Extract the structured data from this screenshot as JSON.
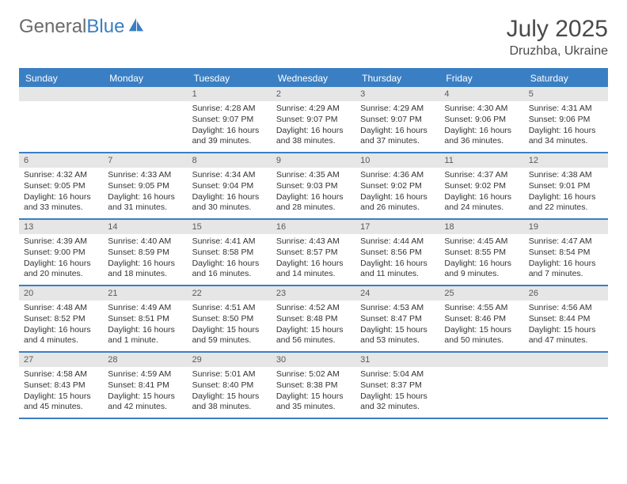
{
  "brand": {
    "part1": "General",
    "part2": "Blue"
  },
  "title": "July 2025",
  "location": "Druzhba, Ukraine",
  "colors": {
    "accent": "#3a7fc4",
    "dayBarBg": "#e6e6e6",
    "textMuted": "#6b6b6b",
    "textDark": "#4a4a4a"
  },
  "daysOfWeek": [
    "Sunday",
    "Monday",
    "Tuesday",
    "Wednesday",
    "Thursday",
    "Friday",
    "Saturday"
  ],
  "firstDayOffset": 2,
  "daysInMonth": 31,
  "days": {
    "1": {
      "sunrise": "4:28 AM",
      "sunset": "9:07 PM",
      "daylight": "16 hours and 39 minutes."
    },
    "2": {
      "sunrise": "4:29 AM",
      "sunset": "9:07 PM",
      "daylight": "16 hours and 38 minutes."
    },
    "3": {
      "sunrise": "4:29 AM",
      "sunset": "9:07 PM",
      "daylight": "16 hours and 37 minutes."
    },
    "4": {
      "sunrise": "4:30 AM",
      "sunset": "9:06 PM",
      "daylight": "16 hours and 36 minutes."
    },
    "5": {
      "sunrise": "4:31 AM",
      "sunset": "9:06 PM",
      "daylight": "16 hours and 34 minutes."
    },
    "6": {
      "sunrise": "4:32 AM",
      "sunset": "9:05 PM",
      "daylight": "16 hours and 33 minutes."
    },
    "7": {
      "sunrise": "4:33 AM",
      "sunset": "9:05 PM",
      "daylight": "16 hours and 31 minutes."
    },
    "8": {
      "sunrise": "4:34 AM",
      "sunset": "9:04 PM",
      "daylight": "16 hours and 30 minutes."
    },
    "9": {
      "sunrise": "4:35 AM",
      "sunset": "9:03 PM",
      "daylight": "16 hours and 28 minutes."
    },
    "10": {
      "sunrise": "4:36 AM",
      "sunset": "9:02 PM",
      "daylight": "16 hours and 26 minutes."
    },
    "11": {
      "sunrise": "4:37 AM",
      "sunset": "9:02 PM",
      "daylight": "16 hours and 24 minutes."
    },
    "12": {
      "sunrise": "4:38 AM",
      "sunset": "9:01 PM",
      "daylight": "16 hours and 22 minutes."
    },
    "13": {
      "sunrise": "4:39 AM",
      "sunset": "9:00 PM",
      "daylight": "16 hours and 20 minutes."
    },
    "14": {
      "sunrise": "4:40 AM",
      "sunset": "8:59 PM",
      "daylight": "16 hours and 18 minutes."
    },
    "15": {
      "sunrise": "4:41 AM",
      "sunset": "8:58 PM",
      "daylight": "16 hours and 16 minutes."
    },
    "16": {
      "sunrise": "4:43 AM",
      "sunset": "8:57 PM",
      "daylight": "16 hours and 14 minutes."
    },
    "17": {
      "sunrise": "4:44 AM",
      "sunset": "8:56 PM",
      "daylight": "16 hours and 11 minutes."
    },
    "18": {
      "sunrise": "4:45 AM",
      "sunset": "8:55 PM",
      "daylight": "16 hours and 9 minutes."
    },
    "19": {
      "sunrise": "4:47 AM",
      "sunset": "8:54 PM",
      "daylight": "16 hours and 7 minutes."
    },
    "20": {
      "sunrise": "4:48 AM",
      "sunset": "8:52 PM",
      "daylight": "16 hours and 4 minutes."
    },
    "21": {
      "sunrise": "4:49 AM",
      "sunset": "8:51 PM",
      "daylight": "16 hours and 1 minute."
    },
    "22": {
      "sunrise": "4:51 AM",
      "sunset": "8:50 PM",
      "daylight": "15 hours and 59 minutes."
    },
    "23": {
      "sunrise": "4:52 AM",
      "sunset": "8:48 PM",
      "daylight": "15 hours and 56 minutes."
    },
    "24": {
      "sunrise": "4:53 AM",
      "sunset": "8:47 PM",
      "daylight": "15 hours and 53 minutes."
    },
    "25": {
      "sunrise": "4:55 AM",
      "sunset": "8:46 PM",
      "daylight": "15 hours and 50 minutes."
    },
    "26": {
      "sunrise": "4:56 AM",
      "sunset": "8:44 PM",
      "daylight": "15 hours and 47 minutes."
    },
    "27": {
      "sunrise": "4:58 AM",
      "sunset": "8:43 PM",
      "daylight": "15 hours and 45 minutes."
    },
    "28": {
      "sunrise": "4:59 AM",
      "sunset": "8:41 PM",
      "daylight": "15 hours and 42 minutes."
    },
    "29": {
      "sunrise": "5:01 AM",
      "sunset": "8:40 PM",
      "daylight": "15 hours and 38 minutes."
    },
    "30": {
      "sunrise": "5:02 AM",
      "sunset": "8:38 PM",
      "daylight": "15 hours and 35 minutes."
    },
    "31": {
      "sunrise": "5:04 AM",
      "sunset": "8:37 PM",
      "daylight": "15 hours and 32 minutes."
    }
  },
  "labels": {
    "sunrise": "Sunrise:",
    "sunset": "Sunset:",
    "daylight": "Daylight:"
  }
}
